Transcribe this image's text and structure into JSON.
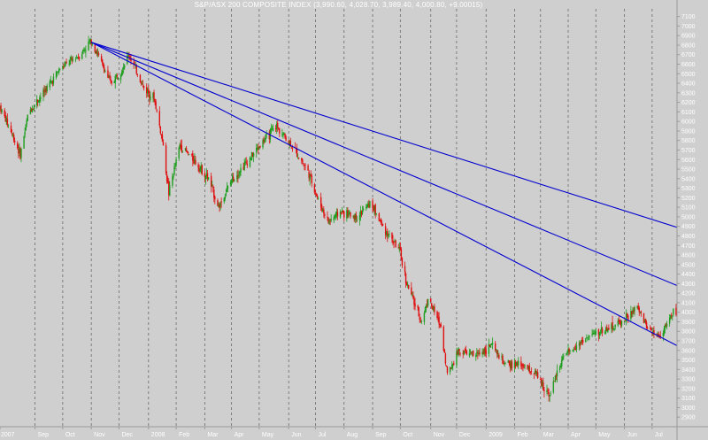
{
  "chart_data": {
    "type": "candlestick",
    "title": "S&P/ASX 200 COMPOSITE INDEX (3,990.60, 4,028.70, 3,989.40, 4,000.80, +9.00015)",
    "xlabel": "",
    "ylabel": "",
    "ylim": [
      2800,
      7180
    ],
    "yticks": [
      2900,
      3000,
      3100,
      3200,
      3300,
      3400,
      3500,
      3600,
      3700,
      3800,
      3900,
      4000,
      4100,
      4200,
      4300,
      4400,
      4500,
      4600,
      4700,
      4800,
      4900,
      5000,
      5100,
      5200,
      5300,
      5400,
      5500,
      5600,
      5700,
      5800,
      5900,
      6000,
      6100,
      6200,
      6300,
      6400,
      6500,
      6600,
      6700,
      6800,
      6900,
      7000,
      7100
    ],
    "x_range": [
      "2007-07-25",
      "2009-07-28"
    ],
    "grid": true,
    "x_ticks": [
      {
        "date": "2007-07-25",
        "label": "2007"
      },
      {
        "date": "2007-09-01",
        "label": "Sep"
      },
      {
        "date": "2007-10-01",
        "label": "Oct"
      },
      {
        "date": "2007-11-01",
        "label": "Nov"
      },
      {
        "date": "2007-12-01",
        "label": "Dec"
      },
      {
        "date": "2008-01-02",
        "label": "2008"
      },
      {
        "date": "2008-02-01",
        "label": "Feb"
      },
      {
        "date": "2008-03-03",
        "label": "Mar"
      },
      {
        "date": "2008-04-01",
        "label": "Apr"
      },
      {
        "date": "2008-05-01",
        "label": "May"
      },
      {
        "date": "2008-06-02",
        "label": "Jun"
      },
      {
        "date": "2008-07-01",
        "label": "Jul"
      },
      {
        "date": "2008-08-01",
        "label": "Aug"
      },
      {
        "date": "2008-09-01",
        "label": "Sep"
      },
      {
        "date": "2008-10-01",
        "label": "Oct"
      },
      {
        "date": "2008-11-03",
        "label": "Nov"
      },
      {
        "date": "2008-12-01",
        "label": "Dec"
      },
      {
        "date": "2009-01-02",
        "label": "2009"
      },
      {
        "date": "2009-02-02",
        "label": "Feb"
      },
      {
        "date": "2009-03-02",
        "label": "Mar"
      },
      {
        "date": "2009-04-01",
        "label": "Apr"
      },
      {
        "date": "2009-05-01",
        "label": "May"
      },
      {
        "date": "2009-06-01",
        "label": "Jun"
      },
      {
        "date": "2009-07-01",
        "label": "Jul"
      }
    ],
    "price_path": [
      {
        "date": "2007-07-25",
        "close": 6150
      },
      {
        "date": "2007-08-06",
        "close": 5900
      },
      {
        "date": "2007-08-16",
        "close": 5650
      },
      {
        "date": "2007-08-25",
        "close": 6100
      },
      {
        "date": "2007-09-10",
        "close": 6300
      },
      {
        "date": "2007-09-28",
        "close": 6550
      },
      {
        "date": "2007-10-20",
        "close": 6700
      },
      {
        "date": "2007-11-01",
        "close": 6850
      },
      {
        "date": "2007-11-08",
        "close": 6700
      },
      {
        "date": "2007-11-22",
        "close": 6400
      },
      {
        "date": "2007-12-04",
        "close": 6550
      },
      {
        "date": "2007-12-12",
        "close": 6700
      },
      {
        "date": "2007-12-28",
        "close": 6350
      },
      {
        "date": "2008-01-08",
        "close": 6250
      },
      {
        "date": "2008-01-17",
        "close": 5800
      },
      {
        "date": "2008-01-24",
        "close": 5250
      },
      {
        "date": "2008-02-05",
        "close": 5750
      },
      {
        "date": "2008-02-20",
        "close": 5600
      },
      {
        "date": "2008-03-07",
        "close": 5400
      },
      {
        "date": "2008-03-18",
        "close": 5100
      },
      {
        "date": "2008-04-02",
        "close": 5400
      },
      {
        "date": "2008-04-20",
        "close": 5600
      },
      {
        "date": "2008-05-06",
        "close": 5800
      },
      {
        "date": "2008-05-20",
        "close": 5950
      },
      {
        "date": "2008-06-05",
        "close": 5750
      },
      {
        "date": "2008-06-22",
        "close": 5500
      },
      {
        "date": "2008-07-05",
        "close": 5150
      },
      {
        "date": "2008-07-15",
        "close": 4950
      },
      {
        "date": "2008-07-28",
        "close": 5050
      },
      {
        "date": "2008-08-15",
        "close": 5000
      },
      {
        "date": "2008-08-30",
        "close": 5150
      },
      {
        "date": "2008-09-12",
        "close": 4900
      },
      {
        "date": "2008-09-30",
        "close": 4650
      },
      {
        "date": "2008-10-08",
        "close": 4300
      },
      {
        "date": "2008-10-24",
        "close": 3900
      },
      {
        "date": "2008-10-31",
        "close": 4150
      },
      {
        "date": "2008-11-14",
        "close": 3850
      },
      {
        "date": "2008-11-21",
        "close": 3350
      },
      {
        "date": "2008-12-03",
        "close": 3600
      },
      {
        "date": "2008-12-22",
        "close": 3550
      },
      {
        "date": "2009-01-08",
        "close": 3650
      },
      {
        "date": "2009-01-22",
        "close": 3450
      },
      {
        "date": "2009-02-10",
        "close": 3450
      },
      {
        "date": "2009-02-25",
        "close": 3350
      },
      {
        "date": "2009-03-06",
        "close": 3200
      },
      {
        "date": "2009-03-12",
        "close": 3150
      },
      {
        "date": "2009-03-25",
        "close": 3500
      },
      {
        "date": "2009-04-15",
        "close": 3700
      },
      {
        "date": "2009-05-05",
        "close": 3800
      },
      {
        "date": "2009-05-20",
        "close": 3850
      },
      {
        "date": "2009-06-05",
        "close": 3950
      },
      {
        "date": "2009-06-15",
        "close": 4050
      },
      {
        "date": "2009-06-25",
        "close": 3850
      },
      {
        "date": "2009-07-08",
        "close": 3750
      },
      {
        "date": "2009-07-16",
        "close": 3850
      },
      {
        "date": "2009-07-24",
        "close": 4000
      }
    ],
    "trendlines": [
      {
        "from": {
          "date": "2007-11-01",
          "value": 6830
        },
        "to": {
          "date": "2009-07-28",
          "value": 4890
        },
        "color": "#0000d0"
      },
      {
        "from": {
          "date": "2007-11-01",
          "value": 6830
        },
        "to": {
          "date": "2009-07-28",
          "value": 4280
        },
        "color": "#0000d0"
      },
      {
        "from": {
          "date": "2007-11-01",
          "value": 6830
        },
        "to": {
          "date": "2009-07-28",
          "value": 3650
        },
        "color": "#0000d0"
      }
    ],
    "colors": {
      "background": "#cfcfcf",
      "up": "#1e9e1e",
      "down": "#e01010",
      "grid": "#6a6a6a",
      "trendline": "#0000d0",
      "axis_text": "#ffffff",
      "title": "#ffffff"
    }
  }
}
